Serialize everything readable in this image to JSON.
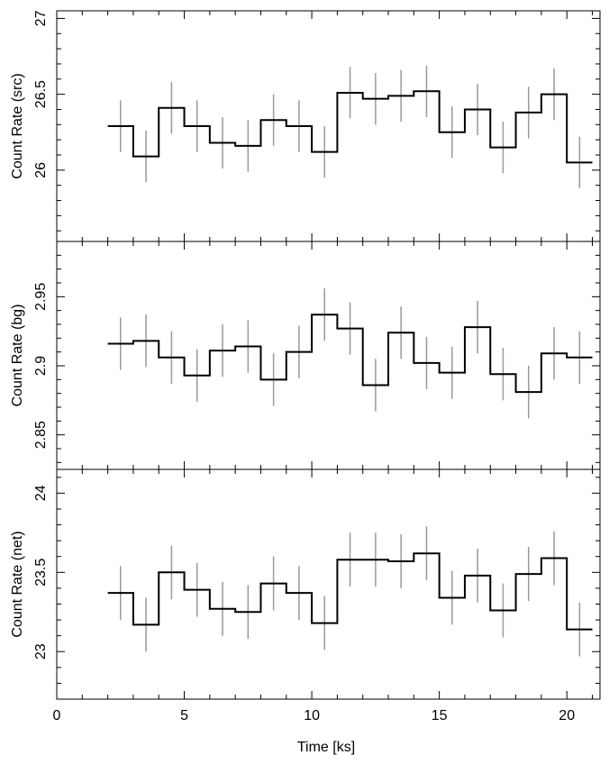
{
  "chart_data": {
    "type": "line",
    "style": "step-with-error-bars",
    "bin_width": 1.0,
    "line_color": "#000000",
    "error_color": "#999999",
    "xlabel": "Time [ks]",
    "xlim": [
      0,
      21.3
    ],
    "x_ticks": [
      0,
      5,
      10,
      15,
      20
    ],
    "x": [
      2.5,
      3.5,
      4.5,
      5.5,
      6.5,
      7.5,
      8.5,
      9.5,
      10.5,
      11.5,
      12.5,
      13.5,
      14.5,
      15.5,
      16.5,
      17.5,
      18.5,
      19.5,
      20.5
    ],
    "panels": [
      {
        "id": "src",
        "ylabel": "Count Rate (src)",
        "ylim": [
          25.53,
          27.05
        ],
        "y_ticks": [
          26,
          26.5,
          27
        ],
        "y_tick_labels": [
          "26",
          "26.5",
          "27"
        ],
        "values": [
          26.29,
          26.09,
          26.41,
          26.29,
          26.18,
          26.16,
          26.33,
          26.29,
          26.12,
          26.51,
          26.47,
          26.49,
          26.52,
          26.25,
          26.4,
          26.15,
          26.38,
          26.5,
          26.05
        ],
        "errors": [
          0.17,
          0.17,
          0.17,
          0.17,
          0.17,
          0.17,
          0.17,
          0.17,
          0.17,
          0.17,
          0.17,
          0.17,
          0.17,
          0.17,
          0.17,
          0.17,
          0.17,
          0.17,
          0.17
        ]
      },
      {
        "id": "bg",
        "ylabel": "Count Rate (bg)",
        "ylim": [
          2.825,
          2.99
        ],
        "y_ticks": [
          2.85,
          2.9,
          2.95
        ],
        "y_tick_labels": [
          "2.85",
          "2.9",
          "2.95"
        ],
        "values": [
          2.916,
          2.918,
          2.906,
          2.893,
          2.911,
          2.914,
          2.89,
          2.91,
          2.937,
          2.927,
          2.886,
          2.924,
          2.902,
          2.895,
          2.928,
          2.894,
          2.881,
          2.909,
          2.906
        ],
        "errors": [
          0.019,
          0.019,
          0.019,
          0.019,
          0.019,
          0.019,
          0.019,
          0.019,
          0.019,
          0.019,
          0.019,
          0.019,
          0.019,
          0.019,
          0.019,
          0.019,
          0.019,
          0.019,
          0.019
        ]
      },
      {
        "id": "net",
        "ylabel": "Count Rate (net)",
        "ylim": [
          22.7,
          24.15
        ],
        "y_ticks": [
          23,
          23.5,
          24
        ],
        "y_tick_labels": [
          "23",
          "23.5",
          "24"
        ],
        "values": [
          23.37,
          23.17,
          23.5,
          23.39,
          23.27,
          23.25,
          23.43,
          23.37,
          23.18,
          23.58,
          23.58,
          23.57,
          23.62,
          23.34,
          23.48,
          23.26,
          23.49,
          23.59,
          23.14
        ],
        "errors": [
          0.17,
          0.17,
          0.17,
          0.17,
          0.17,
          0.17,
          0.17,
          0.17,
          0.17,
          0.17,
          0.17,
          0.17,
          0.17,
          0.17,
          0.17,
          0.17,
          0.17,
          0.17,
          0.17
        ]
      }
    ]
  }
}
